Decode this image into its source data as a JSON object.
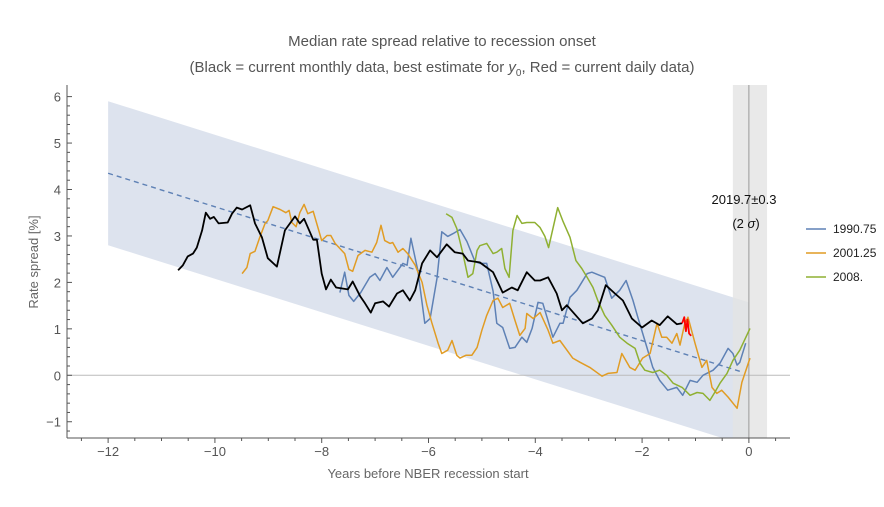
{
  "chart_data": {
    "type": "line",
    "title": "Median rate spread relative to recession onset",
    "subtitle_parts": [
      "(Black = current monthly data, best estimate for ",
      "y",
      "0",
      ", Red = current daily data)"
    ],
    "xlabel": "Years before NBER recession start",
    "ylabel": "Rate spread [%]",
    "xlim": [
      -12.77,
      0.77
    ],
    "ylim": [
      -1.35,
      6.25
    ],
    "xticks": [
      -12,
      -10,
      -8,
      -6,
      -4,
      -2,
      0
    ],
    "xtick_labels": [
      "−12",
      "−10",
      "−8",
      "−6",
      "−4",
      "−2",
      "0"
    ],
    "yticks": [
      -1,
      0,
      1,
      2,
      3,
      4,
      5,
      6
    ],
    "ytick_labels": [
      "−1",
      "0",
      "1",
      "2",
      "3",
      "4",
      "5",
      "6"
    ],
    "grid": false,
    "legend_placement": "right",
    "annotation": {
      "line1": "2019.7±0.3",
      "line2_prefix": "(2 ",
      "line2_sigma": "σ",
      "line2_suffix": ")"
    },
    "trend": {
      "x": [
        -12,
        -0.1
      ],
      "y": [
        4.35,
        0.06
      ],
      "style": "dashed",
      "color": "#5e81b5"
    },
    "band": {
      "x": [
        -12,
        0
      ],
      "upper": [
        5.9,
        1.57
      ],
      "lower": [
        2.8,
        -1.53
      ],
      "color": "#dde3ee"
    },
    "onset_window": {
      "x": [
        -0.3,
        0.34
      ],
      "center": 0,
      "color": "#e4e4e4"
    },
    "series": [
      {
        "name": "1990.75",
        "color": "#5e81b5",
        "points": [
          [
            -7.66,
            1.78
          ],
          [
            -7.57,
            2.22
          ],
          [
            -7.49,
            1.72
          ],
          [
            -7.4,
            1.59
          ],
          [
            -7.27,
            1.78
          ],
          [
            -7.1,
            2.11
          ],
          [
            -7.0,
            2.19
          ],
          [
            -6.91,
            2.04
          ],
          [
            -6.78,
            2.32
          ],
          [
            -6.67,
            2.11
          ],
          [
            -6.48,
            2.41
          ],
          [
            -6.4,
            2.37
          ],
          [
            -6.33,
            2.95
          ],
          [
            -6.2,
            2.26
          ],
          [
            -6.07,
            1.12
          ],
          [
            -5.97,
            1.22
          ],
          [
            -5.84,
            2.09
          ],
          [
            -5.75,
            3.09
          ],
          [
            -5.64,
            2.99
          ],
          [
            -5.54,
            3.05
          ],
          [
            -5.41,
            3.14
          ],
          [
            -5.28,
            2.88
          ],
          [
            -5.13,
            2.45
          ],
          [
            -5.04,
            2.41
          ],
          [
            -4.91,
            2.41
          ],
          [
            -4.79,
            1.81
          ],
          [
            -4.72,
            1.12
          ],
          [
            -4.61,
            1.03
          ],
          [
            -4.48,
            0.58
          ],
          [
            -4.38,
            0.6
          ],
          [
            -4.25,
            0.82
          ],
          [
            -4.16,
            0.71
          ],
          [
            -4.06,
            1.01
          ],
          [
            -3.95,
            1.57
          ],
          [
            -3.86,
            1.55
          ],
          [
            -3.78,
            1.25
          ],
          [
            -3.67,
            0.82
          ],
          [
            -3.54,
            1.12
          ],
          [
            -3.48,
            1.12
          ],
          [
            -3.35,
            1.68
          ],
          [
            -3.22,
            1.83
          ],
          [
            -3.03,
            2.19
          ],
          [
            -2.94,
            2.22
          ],
          [
            -2.79,
            2.15
          ],
          [
            -2.7,
            2.11
          ],
          [
            -2.57,
            1.66
          ],
          [
            -2.42,
            1.83
          ],
          [
            -2.3,
            2.04
          ],
          [
            -2.17,
            1.61
          ],
          [
            -2.08,
            1.25
          ],
          [
            -1.91,
            0.6
          ],
          [
            -1.8,
            0.17
          ],
          [
            -1.67,
            -0.11
          ],
          [
            -1.52,
            -0.32
          ],
          [
            -1.35,
            -0.26
          ],
          [
            -1.24,
            -0.43
          ],
          [
            -1.1,
            -0.11
          ],
          [
            -0.97,
            -0.15
          ],
          [
            -0.86,
            0.0
          ],
          [
            -0.67,
            0.11
          ],
          [
            -0.54,
            0.26
          ],
          [
            -0.39,
            0.58
          ],
          [
            -0.3,
            0.47
          ],
          [
            -0.22,
            0.22
          ],
          [
            -0.17,
            0.28
          ],
          [
            -0.06,
            0.69
          ]
        ]
      },
      {
        "name": "2001.25",
        "color": "#e19c24",
        "points": [
          [
            -9.49,
            2.19
          ],
          [
            -9.4,
            2.32
          ],
          [
            -9.34,
            2.62
          ],
          [
            -9.25,
            2.67
          ],
          [
            -9.16,
            2.97
          ],
          [
            -9.06,
            3.27
          ],
          [
            -9.01,
            3.33
          ],
          [
            -8.91,
            3.63
          ],
          [
            -8.78,
            3.57
          ],
          [
            -8.67,
            3.5
          ],
          [
            -8.61,
            3.55
          ],
          [
            -8.56,
            3.29
          ],
          [
            -8.48,
            3.2
          ],
          [
            -8.41,
            3.5
          ],
          [
            -8.33,
            3.68
          ],
          [
            -8.26,
            3.48
          ],
          [
            -8.16,
            3.53
          ],
          [
            -8.0,
            2.9
          ],
          [
            -7.9,
            3.01
          ],
          [
            -7.83,
            3.01
          ],
          [
            -7.75,
            2.84
          ],
          [
            -7.66,
            2.73
          ],
          [
            -7.57,
            2.62
          ],
          [
            -7.49,
            2.28
          ],
          [
            -7.42,
            2.24
          ],
          [
            -7.32,
            2.58
          ],
          [
            -7.19,
            2.69
          ],
          [
            -7.06,
            2.65
          ],
          [
            -6.97,
            2.86
          ],
          [
            -6.89,
            3.23
          ],
          [
            -6.82,
            2.9
          ],
          [
            -6.72,
            2.84
          ],
          [
            -6.67,
            2.86
          ],
          [
            -6.57,
            2.65
          ],
          [
            -6.48,
            2.73
          ],
          [
            -6.39,
            2.62
          ],
          [
            -6.25,
            2.37
          ],
          [
            -6.12,
            2.0
          ],
          [
            -6.03,
            1.51
          ],
          [
            -5.94,
            1.14
          ],
          [
            -5.82,
            0.69
          ],
          [
            -5.75,
            0.47
          ],
          [
            -5.64,
            0.54
          ],
          [
            -5.56,
            0.75
          ],
          [
            -5.47,
            0.43
          ],
          [
            -5.41,
            0.37
          ],
          [
            -5.3,
            0.43
          ],
          [
            -5.19,
            0.43
          ],
          [
            -5.09,
            0.6
          ],
          [
            -5.0,
            0.97
          ],
          [
            -4.91,
            1.29
          ],
          [
            -4.79,
            1.61
          ],
          [
            -4.7,
            1.66
          ],
          [
            -4.61,
            1.46
          ],
          [
            -4.48,
            1.55
          ],
          [
            -4.38,
            1.18
          ],
          [
            -4.29,
            0.86
          ],
          [
            -4.19,
            1.01
          ],
          [
            -4.16,
            1.33
          ],
          [
            -4.04,
            1.22
          ],
          [
            -3.91,
            1.35
          ],
          [
            -3.76,
            0.97
          ],
          [
            -3.67,
            0.69
          ],
          [
            -3.54,
            0.75
          ],
          [
            -3.3,
            0.37
          ],
          [
            -3.16,
            0.28
          ],
          [
            -2.98,
            0.17
          ],
          [
            -2.75,
            -0.02
          ],
          [
            -2.64,
            0.04
          ],
          [
            -2.47,
            0.06
          ],
          [
            -2.38,
            0.47
          ],
          [
            -2.23,
            0.17
          ],
          [
            -2.13,
            0.11
          ],
          [
            -1.99,
            0.37
          ],
          [
            -1.85,
            0.47
          ],
          [
            -1.72,
            1.12
          ],
          [
            -1.63,
            0.82
          ],
          [
            -1.54,
            0.82
          ],
          [
            -1.44,
            0.69
          ],
          [
            -1.35,
            0.9
          ],
          [
            -1.29,
            0.65
          ],
          [
            -1.2,
            1.12
          ],
          [
            -1.14,
            1.25
          ],
          [
            -1.01,
            0.69
          ],
          [
            -0.88,
            0.17
          ],
          [
            -0.79,
            0.32
          ],
          [
            -0.69,
            -0.26
          ],
          [
            -0.6,
            -0.39
          ],
          [
            -0.51,
            -0.32
          ],
          [
            -0.39,
            -0.47
          ],
          [
            -0.22,
            -0.71
          ],
          [
            -0.13,
            -0.15
          ],
          [
            0.02,
            0.37
          ]
        ]
      },
      {
        "name": "2008.",
        "color": "#8fb032",
        "points": [
          [
            -5.67,
            3.48
          ],
          [
            -5.56,
            3.4
          ],
          [
            -5.47,
            3.16
          ],
          [
            -5.36,
            2.64
          ],
          [
            -5.26,
            2.11
          ],
          [
            -5.17,
            2.19
          ],
          [
            -5.09,
            2.69
          ],
          [
            -5.04,
            2.79
          ],
          [
            -4.91,
            2.84
          ],
          [
            -4.79,
            2.62
          ],
          [
            -4.72,
            2.65
          ],
          [
            -4.63,
            2.73
          ],
          [
            -4.57,
            2.3
          ],
          [
            -4.49,
            2.11
          ],
          [
            -4.42,
            3.12
          ],
          [
            -4.34,
            3.44
          ],
          [
            -4.25,
            3.27
          ],
          [
            -4.16,
            3.29
          ],
          [
            -4.01,
            3.29
          ],
          [
            -3.91,
            3.18
          ],
          [
            -3.82,
            2.99
          ],
          [
            -3.75,
            2.75
          ],
          [
            -3.58,
            3.61
          ],
          [
            -3.48,
            3.31
          ],
          [
            -3.35,
            2.97
          ],
          [
            -3.24,
            2.47
          ],
          [
            -3.13,
            2.3
          ],
          [
            -3.03,
            2.11
          ],
          [
            -2.92,
            1.89
          ],
          [
            -2.83,
            1.61
          ],
          [
            -2.7,
            1.29
          ],
          [
            -2.57,
            1.08
          ],
          [
            -2.42,
            0.82
          ],
          [
            -2.28,
            0.69
          ],
          [
            -2.13,
            0.58
          ],
          [
            -2.04,
            0.26
          ],
          [
            -1.95,
            0.11
          ],
          [
            -1.8,
            0.06
          ],
          [
            -1.67,
            0.11
          ],
          [
            -1.54,
            0.0
          ],
          [
            -1.42,
            -0.17
          ],
          [
            -1.25,
            -0.26
          ],
          [
            -1.1,
            -0.43
          ],
          [
            -0.97,
            -0.37
          ],
          [
            -0.86,
            -0.39
          ],
          [
            -0.73,
            -0.54
          ],
          [
            -0.64,
            -0.37
          ],
          [
            -0.54,
            -0.17
          ],
          [
            -0.41,
            0.04
          ],
          [
            -0.3,
            0.32
          ],
          [
            -0.17,
            0.54
          ],
          [
            0.02,
            1.01
          ]
        ]
      },
      {
        "color": "#000000",
        "points": [
          [
            -10.69,
            2.26
          ],
          [
            -10.6,
            2.37
          ],
          [
            -10.51,
            2.56
          ],
          [
            -10.41,
            2.62
          ],
          [
            -10.34,
            2.75
          ],
          [
            -10.24,
            3.12
          ],
          [
            -10.17,
            3.5
          ],
          [
            -10.09,
            3.37
          ],
          [
            -10.02,
            3.41
          ],
          [
            -9.93,
            3.27
          ],
          [
            -9.76,
            3.29
          ],
          [
            -9.68,
            3.48
          ],
          [
            -9.59,
            3.61
          ],
          [
            -9.49,
            3.57
          ],
          [
            -9.34,
            3.66
          ],
          [
            -9.25,
            3.27
          ],
          [
            -9.12,
            2.97
          ],
          [
            -9.01,
            2.52
          ],
          [
            -8.84,
            2.34
          ],
          [
            -8.69,
            3.12
          ],
          [
            -8.5,
            3.42
          ],
          [
            -8.41,
            3.27
          ],
          [
            -8.33,
            3.37
          ],
          [
            -8.16,
            2.92
          ],
          [
            -8.09,
            2.92
          ],
          [
            -8.0,
            2.19
          ],
          [
            -7.92,
            1.85
          ],
          [
            -7.83,
            2.06
          ],
          [
            -7.73,
            1.89
          ],
          [
            -7.51,
            1.85
          ],
          [
            -7.42,
            2.02
          ],
          [
            -7.28,
            1.7
          ],
          [
            -7.19,
            1.55
          ],
          [
            -7.08,
            1.35
          ],
          [
            -7.0,
            1.55
          ],
          [
            -6.85,
            1.59
          ],
          [
            -6.74,
            1.48
          ],
          [
            -6.59,
            1.76
          ],
          [
            -6.48,
            1.83
          ],
          [
            -6.35,
            1.61
          ],
          [
            -6.25,
            1.83
          ],
          [
            -6.12,
            2.41
          ],
          [
            -5.97,
            2.69
          ],
          [
            -5.84,
            2.54
          ],
          [
            -5.66,
            2.82
          ],
          [
            -5.51,
            2.65
          ],
          [
            -5.36,
            2.62
          ],
          [
            -5.26,
            2.47
          ],
          [
            -5.04,
            2.43
          ],
          [
            -4.91,
            2.32
          ],
          [
            -4.79,
            2.22
          ],
          [
            -4.61,
            1.78
          ],
          [
            -4.44,
            1.89
          ],
          [
            -4.33,
            1.83
          ],
          [
            -4.16,
            2.22
          ],
          [
            -4.01,
            2.04
          ],
          [
            -3.91,
            2.04
          ],
          [
            -3.76,
            2.11
          ],
          [
            -3.6,
            1.76
          ],
          [
            -3.5,
            1.4
          ],
          [
            -3.41,
            1.51
          ],
          [
            -3.11,
            1.12
          ],
          [
            -2.94,
            1.22
          ],
          [
            -2.83,
            1.4
          ],
          [
            -2.68,
            1.94
          ],
          [
            -2.51,
            1.76
          ],
          [
            -2.36,
            1.61
          ],
          [
            -2.19,
            1.22
          ],
          [
            -2.0,
            1.03
          ],
          [
            -1.82,
            1.18
          ],
          [
            -1.67,
            1.08
          ],
          [
            -1.52,
            1.27
          ],
          [
            -1.35,
            1.1
          ],
          [
            -1.25,
            1.12
          ]
        ]
      },
      {
        "color": "#ff0000",
        "points": [
          [
            -1.25,
            1.12
          ],
          [
            -1.21,
            1.25
          ],
          [
            -1.18,
            0.95
          ],
          [
            -1.15,
            1.2
          ],
          [
            -1.12,
            0.9
          ],
          [
            -1.08,
            0.85
          ]
        ]
      }
    ]
  }
}
